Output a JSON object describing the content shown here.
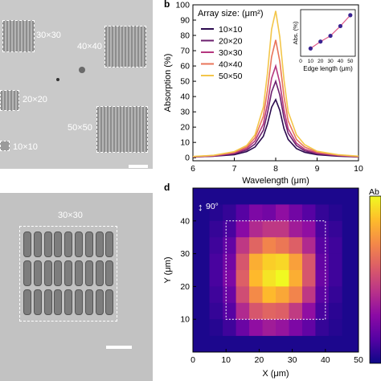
{
  "panel_a": {
    "arrays": [
      {
        "label": "30×30"
      },
      {
        "label": "40×40"
      },
      {
        "label": "20×20"
      },
      {
        "label": "50×50"
      },
      {
        "label": "10×10"
      }
    ]
  },
  "panel_b": {
    "letter": "b",
    "legend_title": "Array size: (μm²)",
    "inset_ylabel": "Abs. (%)",
    "inset_xlabel": "Edge length (μm)",
    "inset_xticks": [
      "0",
      "10",
      "20",
      "30",
      "40",
      "50"
    ]
  },
  "panel_c": {
    "label": "30×30"
  },
  "panel_d": {
    "letter": "d",
    "pol_label": "90°",
    "colorbar_label": "Ab"
  },
  "chart_data": [
    {
      "type": "line",
      "xlabel": "Wavelength (μm)",
      "ylabel": "Absorption (%)",
      "xlim": [
        6,
        10
      ],
      "ylim": [
        -2,
        100
      ],
      "xticks": [
        6,
        7,
        8,
        9,
        10
      ],
      "yticks": [
        0,
        10,
        20,
        30,
        40,
        50,
        60,
        70,
        80,
        90,
        100
      ],
      "x": [
        6.0,
        6.5,
        7.0,
        7.3,
        7.5,
        7.7,
        7.8,
        7.9,
        8.0,
        8.1,
        8.2,
        8.3,
        8.5,
        8.7,
        9.0,
        9.5,
        10.0
      ],
      "series": [
        {
          "name": "10×10",
          "color": "#2b0a4e",
          "values": [
            0.5,
            1,
            2,
            4,
            7,
            14,
            22,
            33,
            38,
            31,
            19,
            12,
            6,
            3.5,
            2,
            1,
            0.5
          ]
        },
        {
          "name": "20×20",
          "color": "#6b1f6e",
          "values": [
            0.5,
            1,
            2.5,
            5,
            9,
            18,
            29,
            43,
            50,
            41,
            26,
            16,
            8,
            4.5,
            2.5,
            1.2,
            0.6
          ]
        },
        {
          "name": "30×30",
          "color": "#b5367e",
          "values": [
            0.6,
            1.2,
            3,
            6,
            11,
            22,
            35,
            52,
            60,
            49,
            31,
            19,
            9.5,
            5.5,
            3,
            1.5,
            0.7
          ]
        },
        {
          "name": "40×40",
          "color": "#e8745a",
          "values": [
            0.7,
            1.4,
            3.5,
            7,
            13,
            27,
            44,
            66,
            77,
            63,
            40,
            24,
            12,
            7,
            3.6,
            1.8,
            0.8
          ]
        },
        {
          "name": "50×50",
          "color": "#f3c64a",
          "values": [
            0.8,
            1.6,
            4,
            8,
            15,
            33,
            55,
            84,
            96,
            79,
            51,
            30,
            15,
            8.5,
            4.2,
            2,
            1
          ]
        }
      ],
      "inset": {
        "type": "line",
        "x": [
          10,
          20,
          30,
          40,
          50
        ],
        "values": [
          38,
          50,
          60,
          77,
          96
        ],
        "xlabel": "Edge length (μm)",
        "ylabel": "Abs. (%)",
        "xlim": [
          0,
          55
        ]
      }
    },
    {
      "type": "heatmap",
      "xlabel": "X (μm)",
      "ylabel": "Y (μm)",
      "xticks": [
        0,
        10,
        20,
        30,
        40,
        50
      ],
      "yticks": [
        10,
        20,
        30,
        40
      ],
      "xlim": [
        0,
        50
      ],
      "ylim": [
        0,
        50
      ],
      "grid": [
        [
          0.05,
          0.08,
          0.15,
          0.25,
          0.22,
          0.3,
          0.22,
          0.15,
          0.08,
          0.05
        ],
        [
          0.08,
          0.12,
          0.28,
          0.4,
          0.45,
          0.45,
          0.35,
          0.3,
          0.12,
          0.08
        ],
        [
          0.1,
          0.18,
          0.45,
          0.6,
          0.7,
          0.66,
          0.58,
          0.4,
          0.15,
          0.1
        ],
        [
          0.12,
          0.22,
          0.55,
          0.82,
          0.9,
          0.92,
          0.78,
          0.55,
          0.18,
          0.1
        ],
        [
          0.12,
          0.25,
          0.58,
          0.85,
          0.95,
          1.0,
          0.82,
          0.55,
          0.2,
          0.1
        ],
        [
          0.1,
          0.2,
          0.52,
          0.72,
          0.85,
          0.8,
          0.7,
          0.45,
          0.16,
          0.08
        ],
        [
          0.08,
          0.15,
          0.4,
          0.55,
          0.6,
          0.58,
          0.46,
          0.3,
          0.12,
          0.06
        ],
        [
          0.05,
          0.1,
          0.2,
          0.3,
          0.35,
          0.32,
          0.25,
          0.18,
          0.08,
          0.05
        ]
      ]
    }
  ]
}
